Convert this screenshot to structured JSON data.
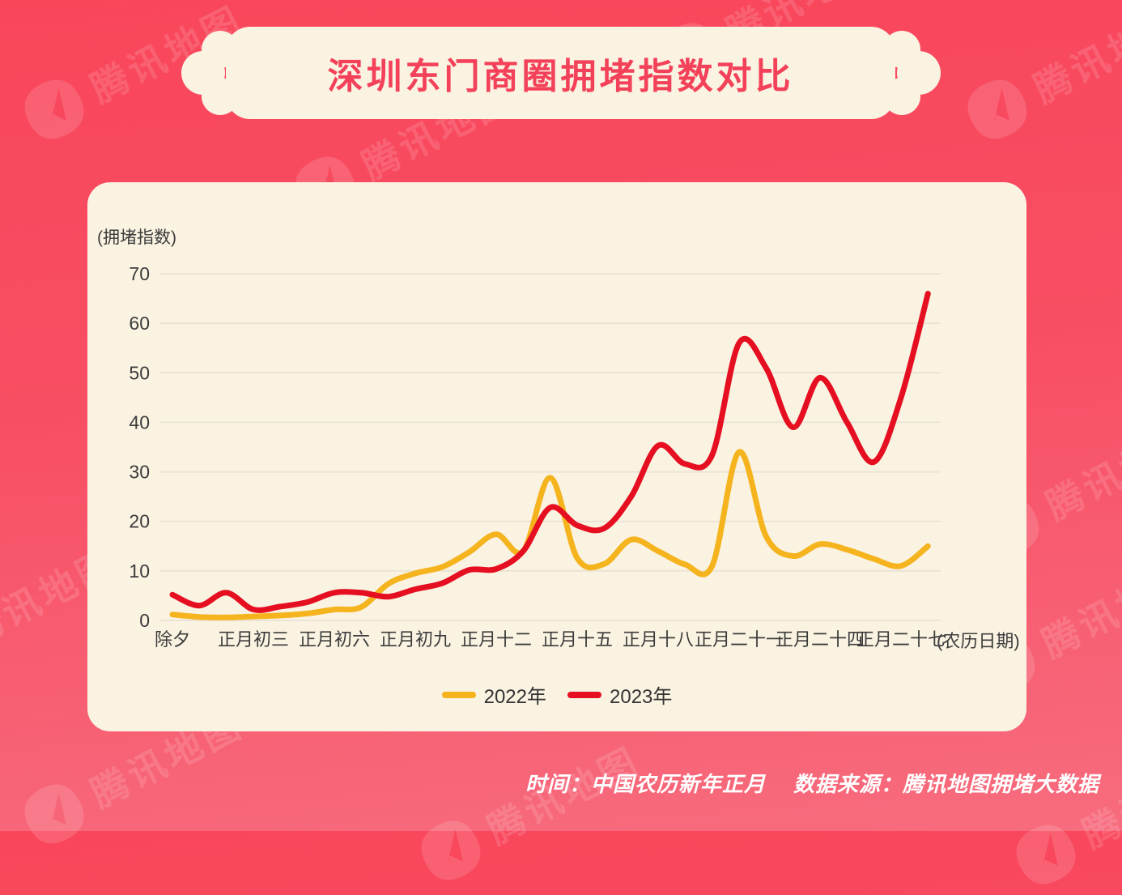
{
  "title": "深圳东门商圈拥堵指数对比",
  "watermark": {
    "text": "腾讯地图",
    "logo": "tencent-map-logo",
    "color": "rgba(255,255,255,0.14)"
  },
  "footer": {
    "time": "时间：中国农历新年正月",
    "source": "数据来源：腾讯地图拥堵大数据"
  },
  "colors": {
    "background_top": "#F9465B",
    "background_bottom": "#F76C7E",
    "card": "#FAF3E2",
    "title_text": "#F4415A",
    "gridline": "#EBE4D6",
    "axis_text": "#3C3C3C",
    "series_2022": "#F5B41E",
    "series_2023": "#E50F21"
  },
  "chart_data": {
    "type": "line",
    "title": "深圳东门商圈拥堵指数对比",
    "y_axis": {
      "unit_label": "(拥堵指数)",
      "ticks": [
        0,
        10,
        20,
        30,
        40,
        50,
        60,
        70
      ],
      "range": [
        0,
        70
      ],
      "grid": true
    },
    "x_axis": {
      "unit_label": "(农历日期)",
      "tick_labels": [
        "除夕",
        "正月初三",
        "正月初六",
        "正月初九",
        "正月十二",
        "正月十五",
        "正月十八",
        "正月二十一",
        "正月二十四",
        "正月二十七"
      ],
      "tick_positions": [
        0,
        3,
        6,
        9,
        12,
        15,
        18,
        21,
        24,
        27
      ],
      "n_points": 29,
      "x_meaning": "days from 除夕 (index 0) to 正月二十八 (index 28), one point per day"
    },
    "legend": {
      "position": "bottom",
      "entries": [
        "2022年",
        "2023年"
      ]
    },
    "series": [
      {
        "name": "2022年",
        "color": "#F5B41E",
        "values": [
          1.2,
          0.7,
          0.6,
          0.8,
          1.0,
          1.4,
          2.2,
          2.7,
          7.4,
          9.5,
          10.8,
          13.8,
          17.4,
          14,
          28.8,
          12.6,
          11.4,
          16.3,
          14,
          11.3,
          11,
          34,
          17,
          13,
          15.4,
          14.3,
          12.4,
          11,
          15
        ]
      },
      {
        "name": "2023年",
        "color": "#E50F21",
        "values": [
          5.2,
          3,
          5.6,
          2.2,
          2.8,
          3.7,
          5.6,
          5.6,
          4.8,
          6.3,
          7.5,
          10.2,
          10.4,
          14,
          22.8,
          19.2,
          18.6,
          25,
          35.3,
          31.6,
          33.4,
          56,
          51,
          39,
          49,
          40,
          32,
          45,
          66
        ]
      }
    ]
  }
}
